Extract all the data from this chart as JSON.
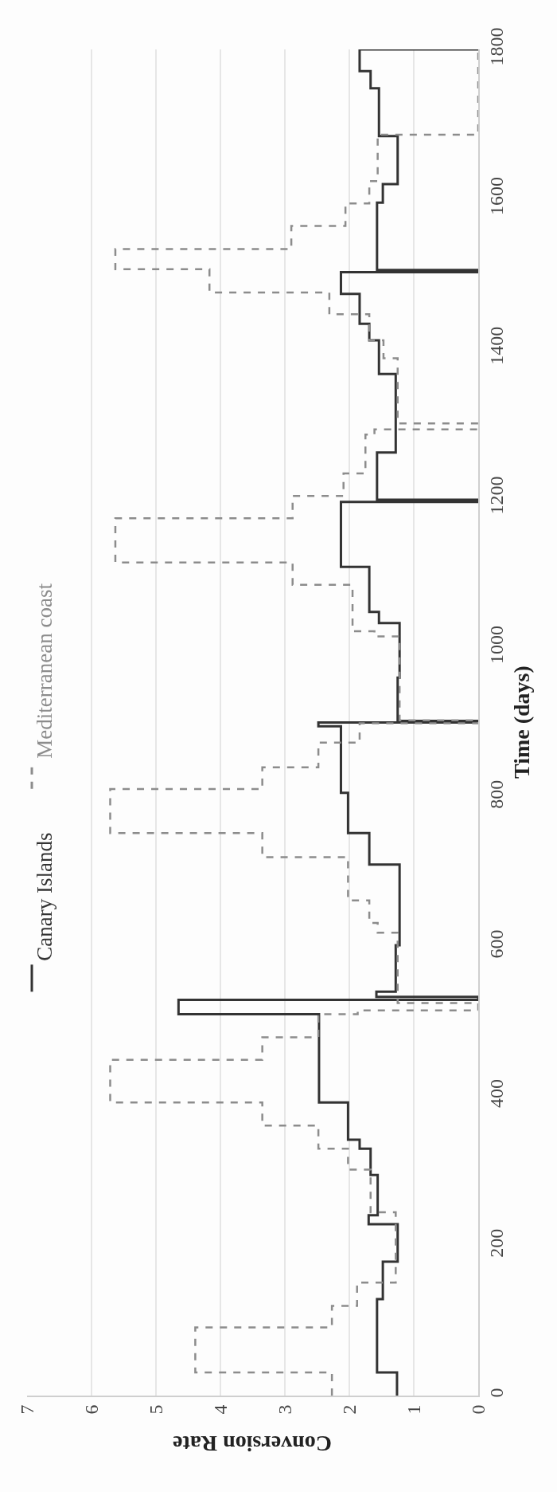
{
  "chart_data": {
    "type": "step",
    "orientation": "horizontal",
    "xlabel": "Conversion Rate",
    "ylabel": "Time (days)",
    "xlim": [
      7,
      0
    ],
    "xticks": [
      0,
      1,
      2,
      3,
      4,
      5,
      6,
      7
    ],
    "ylim": [
      0,
      1800
    ],
    "yticks": [
      0,
      200,
      400,
      600,
      800,
      1000,
      1200,
      1400,
      1600,
      1800
    ],
    "grid": "x",
    "legend": "left",
    "series": [
      {
        "name": "Canary Islands",
        "color": "#333333",
        "line_style": "solid",
        "x": [
          0,
          31,
          129,
          179,
          229,
          241,
          295,
          330,
          342,
          392,
          510,
          529,
          533,
          540,
          602,
          710,
          752,
          806,
          895,
          900,
          902,
          960,
          1033,
          1048,
          1108,
          1195,
          1198,
          1261,
          1366,
          1411,
          1433,
          1473,
          1502,
          1505,
          1595,
          1620,
          1684,
          1748,
          1771,
          1800
        ],
        "values": [
          1.26,
          1.57,
          1.48,
          1.25,
          1.7,
          1.56,
          1.67,
          1.84,
          2.02,
          2.47,
          4.65,
          0,
          1.58,
          1.28,
          1.22,
          1.69,
          2.02,
          2.13,
          2.48,
          0,
          1.25,
          1.22,
          1.54,
          1.69,
          2.13,
          0,
          1.57,
          1.28,
          1.54,
          1.69,
          1.84,
          2.13,
          0,
          1.57,
          1.48,
          1.25,
          1.54,
          1.67,
          1.84,
          0
        ]
      },
      {
        "name": "Mediterranean coast",
        "color": "#8c8c8c",
        "line_style": "dashed",
        "x": [
          0,
          31,
          91,
          120,
          151,
          245,
          302,
          330,
          361,
          392,
          449,
          479,
          510,
          515,
          525,
          619,
          632,
          662,
          720,
          752,
          811,
          840,
          873,
          899,
          903,
          1015,
          1022,
          1084,
          1114,
          1173,
          1203,
          1233,
          1285,
          1292,
          1300,
          1387,
          1411,
          1446,
          1475,
          1506,
          1533,
          1564,
          1594,
          1624,
          1686,
          1800
        ],
        "values": [
          2.27,
          4.39,
          2.27,
          1.88,
          1.28,
          1.67,
          2.02,
          2.48,
          3.35,
          5.71,
          3.35,
          2.48,
          1.87,
          0,
          1.25,
          1.56,
          1.69,
          2.02,
          3.35,
          5.71,
          3.35,
          2.48,
          1.84,
          0,
          1.22,
          1.61,
          1.95,
          2.88,
          5.63,
          2.88,
          2.09,
          1.75,
          1.61,
          0,
          1.25,
          1.47,
          1.69,
          2.31,
          4.17,
          5.63,
          2.9,
          2.06,
          1.69,
          1.56,
          0,
          0
        ]
      }
    ]
  }
}
